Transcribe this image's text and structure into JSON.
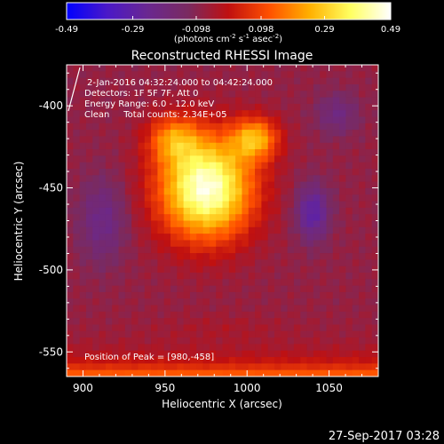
{
  "chart_data": {
    "type": "heatmap",
    "title": "Reconstructed RHESSI Image",
    "xlabel": "Heliocentric X (arcsec)",
    "ylabel": "Heliocentric Y (arcsec)",
    "xlim": [
      890,
      1080
    ],
    "ylim": [
      -565,
      -375
    ],
    "x_ticks": [
      "900",
      "950",
      "1000",
      "1050"
    ],
    "x_tick_values": [
      900,
      950,
      1000,
      1050
    ],
    "y_ticks": [
      "-400",
      "-450",
      "-500",
      "-550"
    ],
    "y_tick_values": [
      -400,
      -450,
      -500,
      -550
    ],
    "colorbar": {
      "ticks": [
        "-0.49",
        "-0.29",
        "-0.098",
        "0.098",
        "0.29",
        "0.49"
      ],
      "tick_values": [
        -0.49,
        -0.29,
        -0.098,
        0.098,
        0.29,
        0.49
      ],
      "range": [
        -0.49,
        0.49
      ],
      "unit_line": "(photons cm",
      "unit_sup1": "-2",
      "unit_mid": " s",
      "unit_sup2": "-1",
      "unit_end": " asec",
      "unit_sup3": "-2",
      "unit_close": ")",
      "colormap": [
        "#0000ff",
        "#4a18c8",
        "#6a2890",
        "#7a2a60",
        "#c01010",
        "#ff5000",
        "#ffb000",
        "#ffff60",
        "#ffffff"
      ]
    },
    "annotations": {
      "time": "2-Jan-2016 04:32:24.000 to 04:42:24.000",
      "detectors": "Detectors: 1F 5F 7F, Att 0",
      "energy": "Energy Range: 6.0 - 12.0 keV",
      "clean": "Clean     Total counts: 2.34E+05",
      "peak": "Position of Peak = [980,-458]"
    },
    "peak": {
      "x": 980,
      "y": -458,
      "value": 0.49
    },
    "sources": [
      {
        "x": 975,
        "y": -450,
        "sx": 20,
        "sy": 22,
        "amp": 0.55
      },
      {
        "x": 1005,
        "y": -420,
        "sx": 10,
        "sy": 9,
        "amp": 0.3
      },
      {
        "x": 955,
        "y": -420,
        "sx": 11,
        "sy": 10,
        "amp": 0.22
      },
      {
        "x": 1040,
        "y": -465,
        "sx": 7,
        "sy": 12,
        "amp": -0.22
      },
      {
        "x": 912,
        "y": -470,
        "sx": 10,
        "sy": 18,
        "amp": -0.14
      },
      {
        "x": 1055,
        "y": -405,
        "sx": 9,
        "sy": 9,
        "amp": -0.12
      },
      {
        "x": 985,
        "y": -535,
        "sx": 28,
        "sy": 6,
        "amp": 0.03
      }
    ],
    "bottom_edge_value": 0.18
  },
  "footer": {
    "timestamp": "27-Sep-2017 03:28"
  }
}
